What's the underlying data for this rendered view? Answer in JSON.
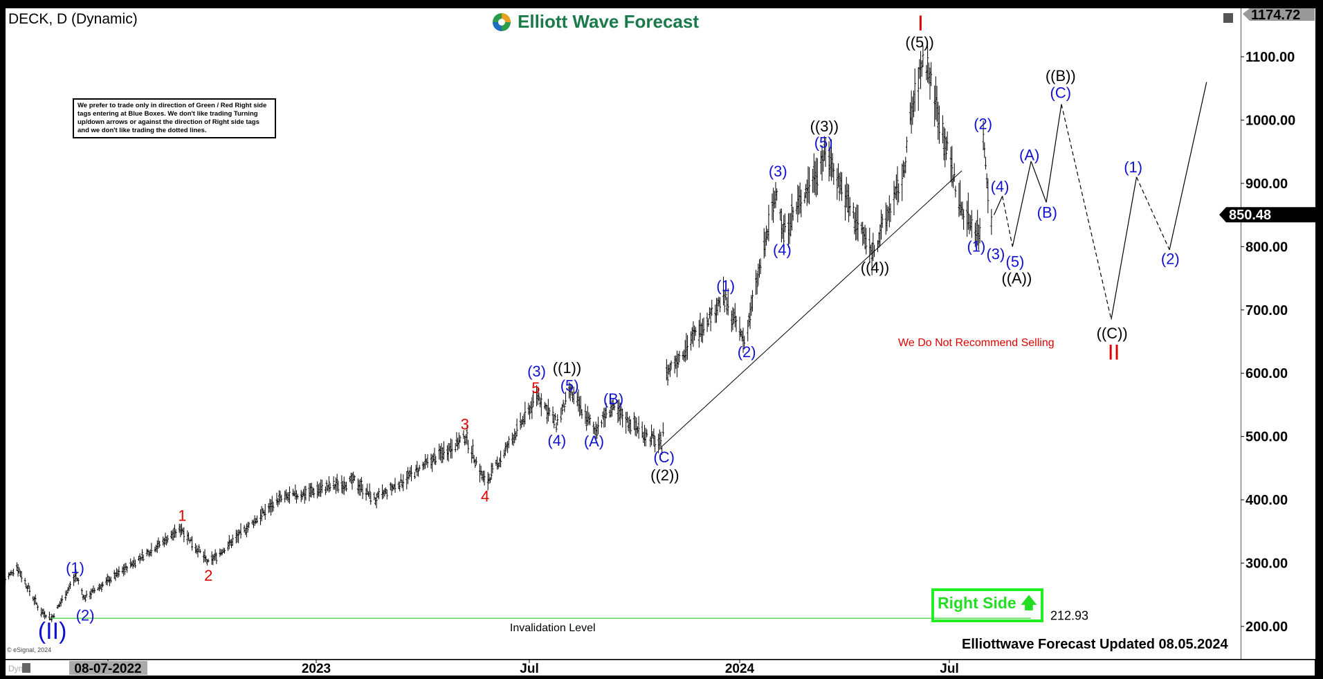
{
  "header": {
    "title": "DECK, D (Dynamic)",
    "logo_text": "Elliott Wave Forecast"
  },
  "note": "We prefer to trade only in direction of Green / Red Right side tags entering at Blue Boxes. We don't like trading Turning up/down arrows or against the direction of Right side tags and we don't like trading the dotted lines.",
  "footer": {
    "updated": "Elliottwave Forecast Updated 08.05.2024",
    "copyright": "© eSignal, 2024",
    "dyn": "Dyn"
  },
  "right_side": {
    "label": "Right Side",
    "icon": "arrow-up-icon",
    "color": "#22dd22"
  },
  "invalidation": {
    "label": "Invalidation Level",
    "value": "212.93",
    "color": "#22cc22"
  },
  "warning": {
    "text": "We Do Not Recommend Selling",
    "color": "#e00000"
  },
  "colors": {
    "blue": "#1010d0",
    "red": "#e00000",
    "black": "#000000"
  },
  "chart_data": {
    "type": "ohlc",
    "symbol": "DECK",
    "interval": "D",
    "ylim": [
      150,
      1174.72
    ],
    "yticks": [
      "1100.00",
      "1000.00",
      "900.00",
      "800.00",
      "700.00",
      "600.00",
      "500.00",
      "400.00",
      "300.00",
      "200.00"
    ],
    "xticks": [
      "08-07-2022",
      "2023",
      "Jul",
      "2024",
      "Jul"
    ],
    "top_flag": "1174.72",
    "last_price": "850.48",
    "price_path": [
      [
        "2022-04-07",
        270
      ],
      [
        "2022-04-18",
        295
      ],
      [
        "2022-05-08",
        225
      ],
      [
        "2022-05-18",
        213
      ],
      [
        "2022-06-08",
        280
      ],
      [
        "2022-06-15",
        245
      ],
      [
        "2022-09-07",
        355
      ],
      [
        "2022-09-30",
        300
      ],
      [
        "2022-11-29",
        400
      ],
      [
        "2023-02-03",
        430
      ],
      [
        "2023-02-21",
        400
      ],
      [
        "2023-05-10",
        500
      ],
      [
        "2023-05-27",
        425
      ],
      [
        "2023-07-11",
        565
      ],
      [
        "2023-07-27",
        520
      ],
      [
        "2023-08-08",
        570
      ],
      [
        "2023-08-29",
        510
      ],
      [
        "2023-09-12",
        545
      ],
      [
        "2023-10-26",
        485
      ],
      [
        "2023-10-30",
        600
      ],
      [
        "2023-12-18",
        720
      ],
      [
        "2024-01-05",
        650
      ],
      [
        "2024-02-03",
        900
      ],
      [
        "2024-02-07",
        820
      ],
      [
        "2024-03-16",
        950
      ],
      [
        "2024-04-08",
        850
      ],
      [
        "2024-04-24",
        790
      ],
      [
        "2024-05-21",
        910
      ],
      [
        "2024-05-26",
        990
      ],
      [
        "2024-06-08",
        1105
      ],
      [
        "2024-07-10",
        860
      ],
      [
        "2024-07-26",
        820
      ],
      [
        "2024-07-29",
        980
      ],
      [
        "2024-08-06",
        810
      ],
      [
        "2024-08-05",
        850.48
      ]
    ],
    "wave_labels": [
      {
        "text": "(II)",
        "color": "blue"
      },
      {
        "text": "(1)",
        "color": "blue"
      },
      {
        "text": "(2)",
        "color": "blue"
      },
      {
        "text": "1",
        "color": "red"
      },
      {
        "text": "2",
        "color": "red"
      },
      {
        "text": "3",
        "color": "red"
      },
      {
        "text": "4",
        "color": "red"
      },
      {
        "text": "5",
        "color": "red"
      },
      {
        "text": "(3)",
        "color": "blue"
      },
      {
        "text": "((1))",
        "color": "black"
      },
      {
        "text": "(5)",
        "color": "blue"
      },
      {
        "text": "(4)",
        "color": "blue"
      },
      {
        "text": "(A)",
        "color": "blue"
      },
      {
        "text": "(B)",
        "color": "blue"
      },
      {
        "text": "(C)",
        "color": "blue"
      },
      {
        "text": "((2))",
        "color": "black"
      },
      {
        "text": "(1)",
        "color": "blue"
      },
      {
        "text": "(2)",
        "color": "blue"
      },
      {
        "text": "(3)",
        "color": "blue"
      },
      {
        "text": "(4)",
        "color": "blue"
      },
      {
        "text": "(5)",
        "color": "blue"
      },
      {
        "text": "((3))",
        "color": "black"
      },
      {
        "text": "((4))",
        "color": "black"
      },
      {
        "text": "((5))",
        "color": "black"
      },
      {
        "text": "I",
        "color": "red"
      },
      {
        "text": "(2)",
        "color": "blue"
      },
      {
        "text": "(4)",
        "color": "blue"
      },
      {
        "text": "(1)",
        "color": "blue"
      },
      {
        "text": "(3)",
        "color": "blue"
      },
      {
        "text": "(5)",
        "color": "blue"
      },
      {
        "text": "((A))",
        "color": "black"
      },
      {
        "text": "(A)",
        "color": "blue"
      },
      {
        "text": "(B)",
        "color": "blue"
      },
      {
        "text": "((B))",
        "color": "black"
      },
      {
        "text": "(C)",
        "color": "blue"
      },
      {
        "text": "((C))",
        "color": "black"
      },
      {
        "text": "II",
        "color": "red"
      },
      {
        "text": "(1)",
        "color": "blue"
      },
      {
        "text": "(2)",
        "color": "blue"
      }
    ],
    "projection": [
      [
        850,
        "solid"
      ],
      [
        880,
        "dashed"
      ],
      [
        800,
        "solid"
      ],
      [
        935,
        "solid"
      ],
      [
        870,
        "solid"
      ],
      [
        1025,
        "dashed"
      ],
      [
        685,
        "solid"
      ],
      [
        910,
        "dashed"
      ],
      [
        795,
        "solid"
      ],
      [
        1060,
        "end"
      ]
    ]
  }
}
